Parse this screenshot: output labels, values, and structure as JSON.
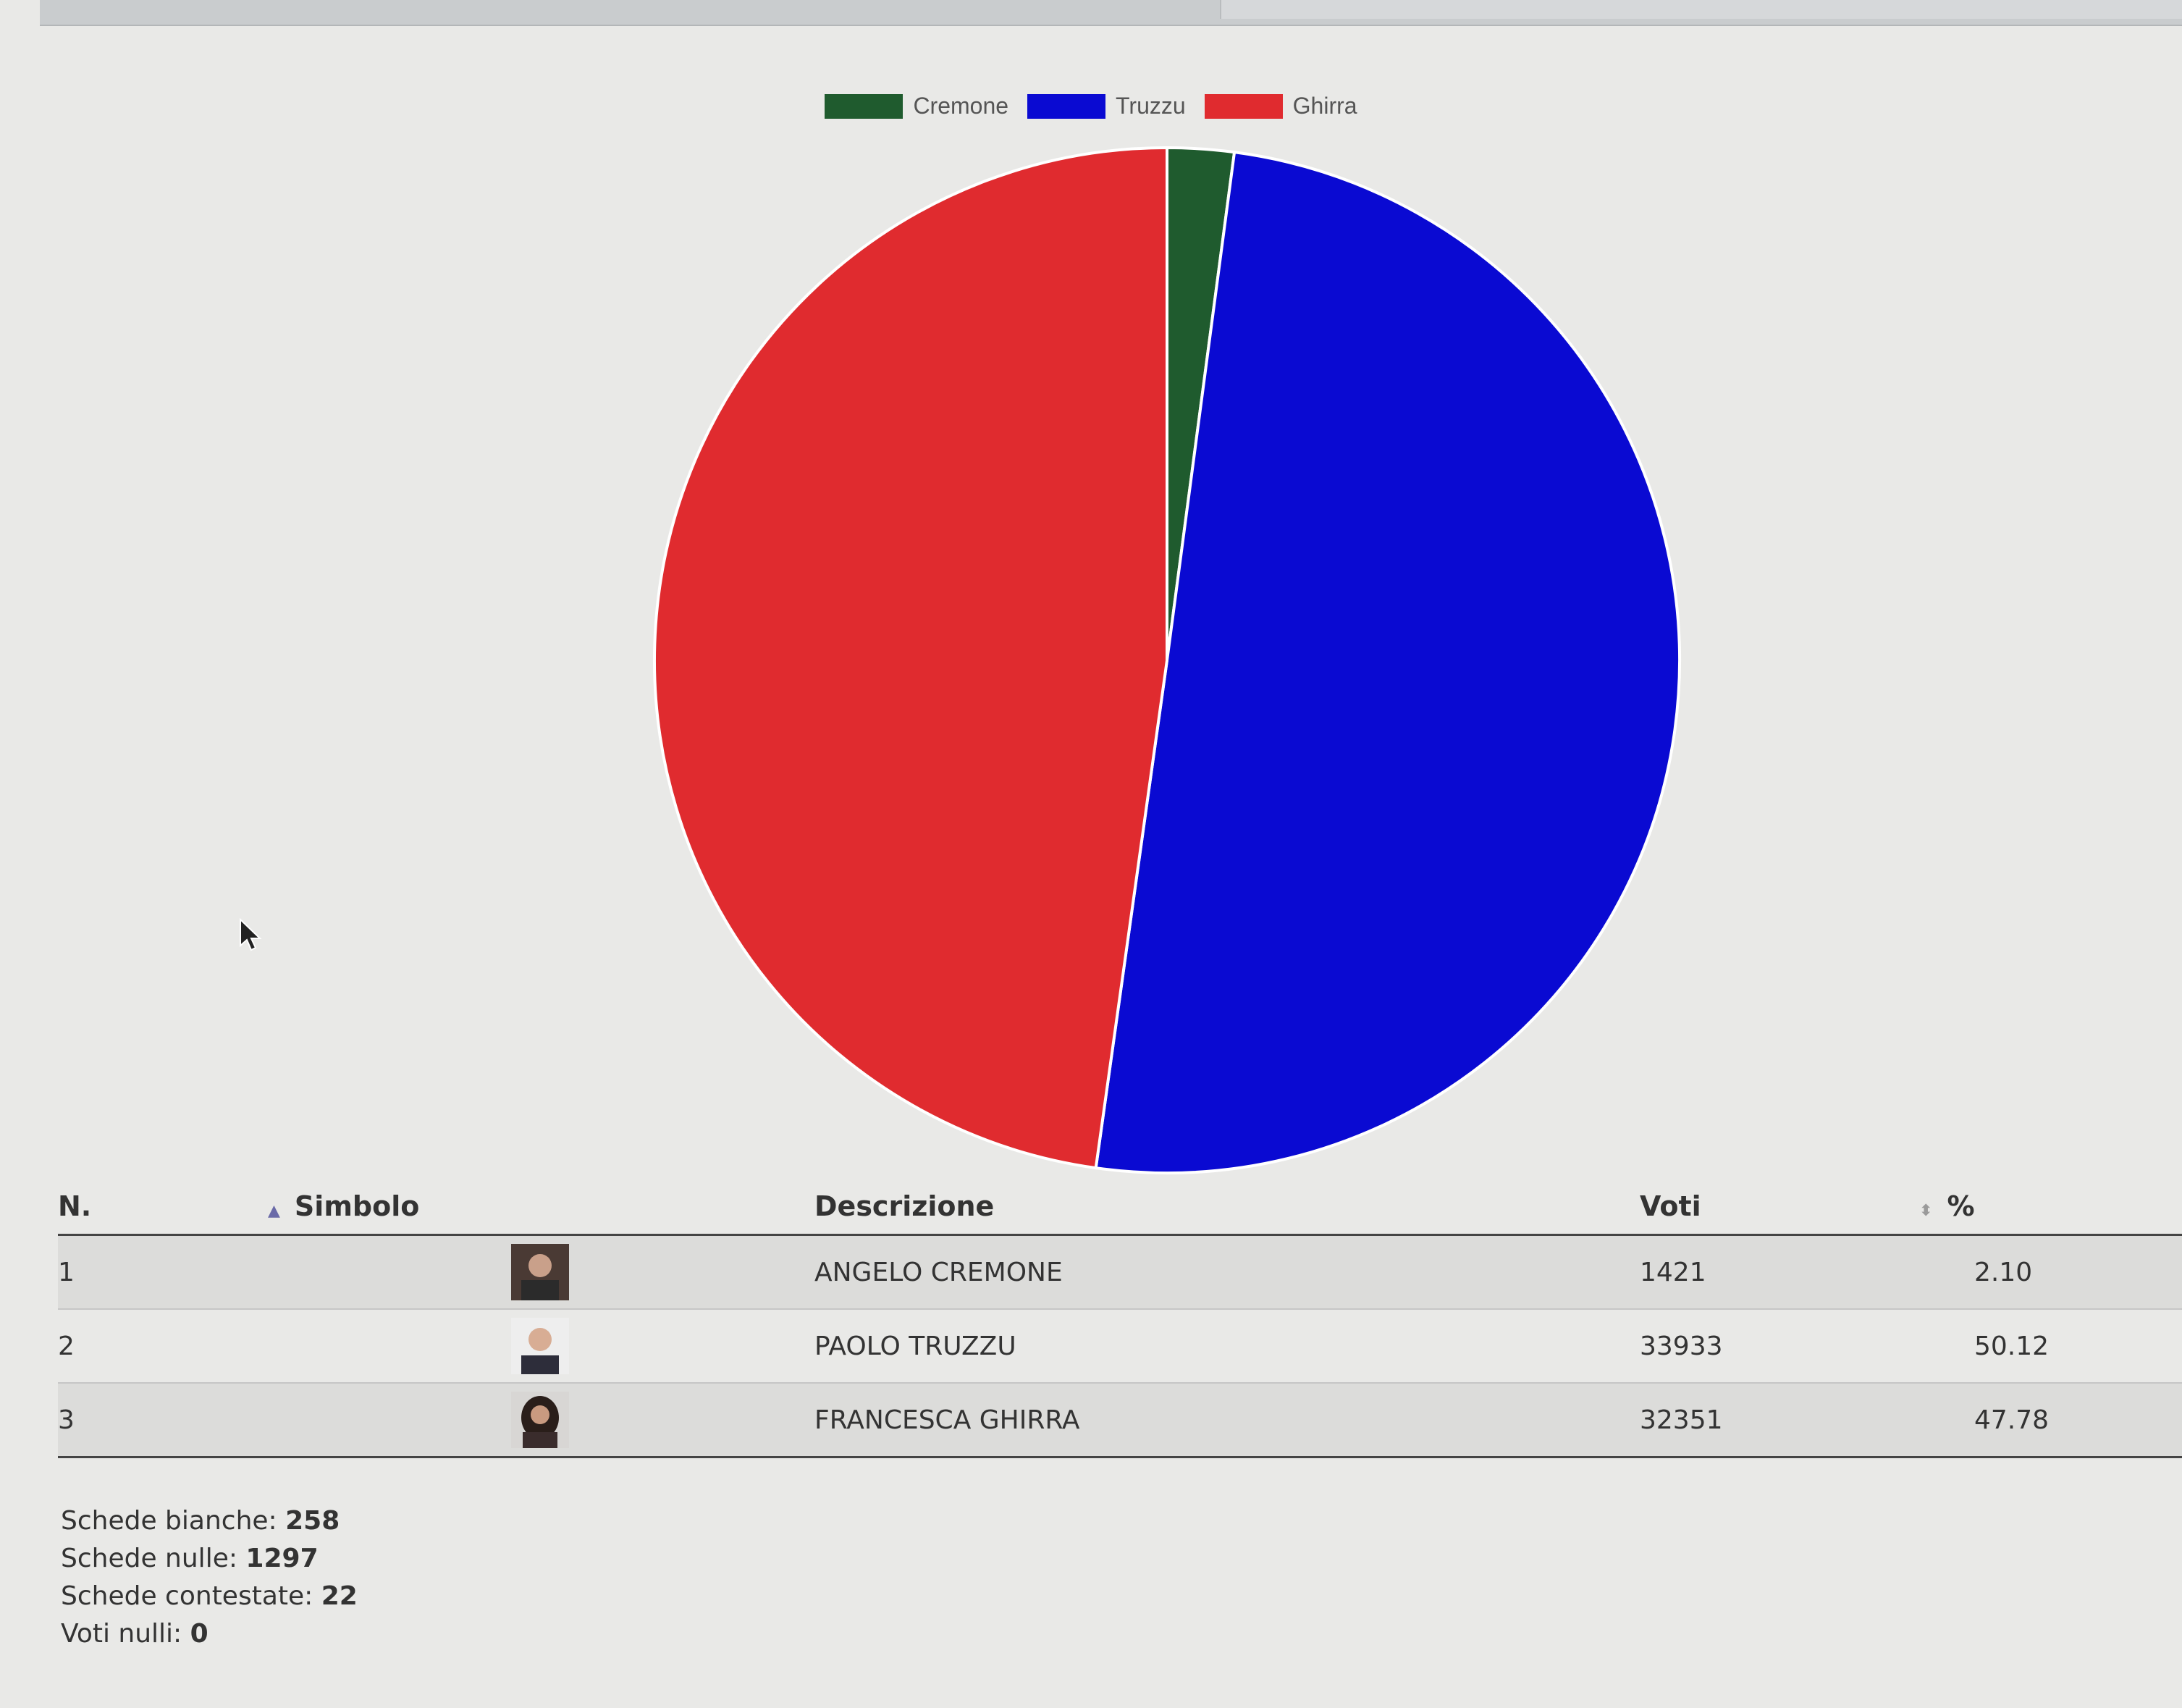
{
  "chart_data": {
    "type": "pie",
    "legend_position": "top",
    "series": [
      {
        "name": "Cremone",
        "value": 1421,
        "color": "#1f5b2e"
      },
      {
        "name": "Truzzu",
        "value": 33933,
        "color": "#0a0ad2"
      },
      {
        "name": "Ghirra",
        "value": 32351,
        "color": "#e02b2f"
      }
    ]
  },
  "table": {
    "headers": {
      "number": "N.",
      "symbol": "Simbolo",
      "description": "Descrizione",
      "votes": "Voti",
      "percent": "%"
    },
    "rows": [
      {
        "number": "1",
        "description": "ANGELO CREMONE",
        "votes": "1421",
        "percent": "2.10"
      },
      {
        "number": "2",
        "description": "PAOLO TRUZZU",
        "votes": "33933",
        "percent": "50.12"
      },
      {
        "number": "3",
        "description": "FRANCESCA GHIRRA",
        "votes": "32351",
        "percent": "47.78"
      }
    ]
  },
  "stats": {
    "blank_label": "Schede bianche:",
    "blank_value": "258",
    "null_ballots_label": "Schede nulle:",
    "null_ballots_value": "1297",
    "contested_label": "Schede contestate:",
    "contested_value": "22",
    "null_votes_label": "Voti nulli:",
    "null_votes_value": "0"
  }
}
